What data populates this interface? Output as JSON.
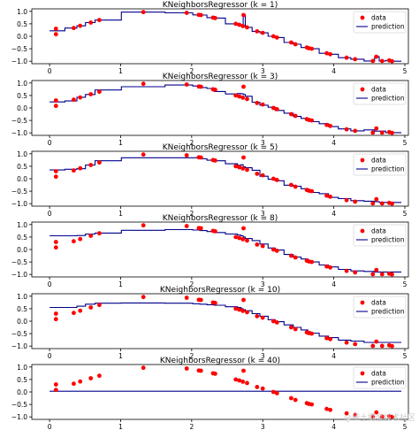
{
  "data_points": {
    "x": [
      0.09,
      0.09,
      0.34,
      0.43,
      0.58,
      0.7,
      1.32,
      1.93,
      2.1,
      2.13,
      2.3,
      2.33,
      2.62,
      2.67,
      2.72,
      2.73,
      2.78,
      2.92,
      3.0,
      3.15,
      3.2,
      3.4,
      3.46,
      3.62,
      3.65,
      3.69,
      3.9,
      3.95,
      4.18,
      4.3,
      4.55,
      4.6,
      4.68,
      4.78,
      4.82
    ]
  },
  "chart_data": [
    {
      "type": "line",
      "title": "KNeighborsRegressor (k = 1)",
      "k": 1,
      "xlim": [
        -0.25,
        5.05
      ],
      "ylim": [
        -1.1,
        1.1
      ],
      "xticks": [
        0,
        1,
        2,
        3,
        4,
        5
      ],
      "yticks": [
        -1.0,
        -0.5,
        0.0,
        0.5,
        1.0
      ],
      "ytick_labels": [
        "−1.0",
        "−0.5",
        "0.0",
        "0.5",
        "1.0"
      ],
      "legend": {
        "placement": "top-right",
        "entries": [
          "data",
          "prediction"
        ]
      },
      "series": [
        {
          "name": "data",
          "type": "scatter",
          "y": [
            0.3,
            0.08,
            0.33,
            0.42,
            0.55,
            0.65,
            0.97,
            0.94,
            0.86,
            0.85,
            0.75,
            0.73,
            0.5,
            0.46,
            0.41,
            0.85,
            0.36,
            0.2,
            0.14,
            0.0,
            -0.05,
            -0.25,
            -0.32,
            -0.45,
            -0.48,
            -0.5,
            -0.68,
            -0.72,
            -0.86,
            -0.92,
            -0.99,
            -0.82,
            -0.99,
            -0.97,
            -1.0
          ]
        },
        {
          "name": "prediction",
          "type": "line",
          "y": [
            0.22,
            0.22,
            0.33,
            0.42,
            0.55,
            0.65,
            0.97,
            0.94,
            0.86,
            0.85,
            0.75,
            0.73,
            0.5,
            0.46,
            0.41,
            0.85,
            0.36,
            0.2,
            0.14,
            0.0,
            -0.05,
            -0.25,
            -0.32,
            -0.45,
            -0.48,
            -0.5,
            -0.68,
            -0.72,
            -0.86,
            -0.92,
            -0.99,
            -0.82,
            -0.99,
            -0.97,
            -1.0
          ]
        }
      ]
    },
    {
      "type": "line",
      "title": "KNeighborsRegressor (k = 3)",
      "k": 3,
      "xlim": [
        -0.25,
        5.05
      ],
      "ylim": [
        -1.1,
        1.1
      ],
      "xticks": [
        0,
        1,
        2,
        3,
        4,
        5
      ],
      "yticks": [
        -1.0,
        -0.5,
        0.0,
        0.5,
        1.0
      ],
      "ytick_labels": [
        "−1.0",
        "−0.5",
        "0.0",
        "0.5",
        "1.0"
      ],
      "legend": {
        "placement": "top-right",
        "entries": [
          "data",
          "prediction"
        ]
      },
      "series": [
        {
          "name": "data",
          "type": "scatter",
          "y": [
            0.3,
            0.08,
            0.33,
            0.42,
            0.55,
            0.65,
            0.97,
            0.94,
            0.86,
            0.85,
            0.75,
            0.73,
            0.5,
            0.46,
            0.41,
            0.85,
            0.36,
            0.2,
            0.14,
            0.0,
            -0.05,
            -0.25,
            -0.32,
            -0.45,
            -0.48,
            -0.5,
            -0.68,
            -0.72,
            -0.86,
            -0.92,
            -0.99,
            -0.82,
            -0.99,
            -0.97,
            -1.0
          ]
        },
        {
          "name": "prediction",
          "type": "line",
          "y": [
            0.24,
            0.24,
            0.28,
            0.43,
            0.54,
            0.72,
            0.85,
            0.92,
            0.88,
            0.82,
            0.78,
            0.66,
            0.56,
            0.58,
            0.57,
            0.54,
            0.47,
            0.23,
            0.11,
            0.03,
            -0.1,
            -0.21,
            -0.34,
            -0.42,
            -0.48,
            -0.55,
            -0.63,
            -0.75,
            -0.84,
            -0.92,
            -0.88,
            -0.93,
            -0.93,
            -0.99,
            -0.99
          ]
        }
      ]
    },
    {
      "type": "line",
      "title": "KNeighborsRegressor (k = 5)",
      "k": 5,
      "xlim": [
        -0.25,
        5.05
      ],
      "ylim": [
        -1.1,
        1.1
      ],
      "xticks": [
        0,
        1,
        2,
        3,
        4,
        5
      ],
      "yticks": [
        -1.0,
        -0.5,
        0.0,
        0.5,
        1.0
      ],
      "ytick_labels": [
        "−1.0",
        "−0.5",
        "0.0",
        "0.5",
        "1.0"
      ],
      "legend": {
        "placement": "top-right",
        "entries": [
          "data",
          "prediction"
        ]
      },
      "series": [
        {
          "name": "data",
          "type": "scatter",
          "y": [
            0.3,
            0.08,
            0.33,
            0.42,
            0.55,
            0.65,
            0.97,
            0.94,
            0.86,
            0.85,
            0.75,
            0.73,
            0.5,
            0.46,
            0.41,
            0.85,
            0.36,
            0.2,
            0.14,
            0.0,
            -0.05,
            -0.25,
            -0.32,
            -0.45,
            -0.48,
            -0.5,
            -0.68,
            -0.72,
            -0.86,
            -0.92,
            -0.99,
            -0.82,
            -0.99,
            -0.97,
            -1.0
          ]
        },
        {
          "name": "prediction",
          "type": "line",
          "y": [
            0.35,
            0.35,
            0.38,
            0.4,
            0.55,
            0.72,
            0.84,
            0.84,
            0.84,
            0.8,
            0.74,
            0.72,
            0.6,
            0.54,
            0.56,
            0.48,
            0.44,
            0.34,
            0.1,
            -0.02,
            -0.08,
            -0.26,
            -0.3,
            -0.4,
            -0.5,
            -0.55,
            -0.6,
            -0.75,
            -0.8,
            -0.88,
            -0.9,
            -0.92,
            -0.95,
            -0.95,
            -0.95
          ]
        }
      ]
    },
    {
      "type": "line",
      "title": "KNeighborsRegressor (k = 8)",
      "k": 8,
      "xlim": [
        -0.25,
        5.05
      ],
      "ylim": [
        -1.1,
        1.1
      ],
      "xticks": [
        0,
        1,
        2,
        3,
        4,
        5
      ],
      "yticks": [
        -1.0,
        -0.5,
        0.0,
        0.5,
        1.0
      ],
      "ytick_labels": [
        "−1.0",
        "−0.5",
        "0.0",
        "0.5",
        "1.0"
      ],
      "legend": {
        "placement": "top-right",
        "entries": [
          "data",
          "prediction"
        ]
      },
      "series": [
        {
          "name": "data",
          "type": "scatter",
          "y": [
            0.3,
            0.08,
            0.33,
            0.42,
            0.55,
            0.65,
            0.97,
            0.94,
            0.86,
            0.85,
            0.75,
            0.73,
            0.5,
            0.46,
            0.41,
            0.85,
            0.36,
            0.2,
            0.14,
            0.0,
            -0.05,
            -0.25,
            -0.32,
            -0.45,
            -0.48,
            -0.5,
            -0.68,
            -0.72,
            -0.86,
            -0.92,
            -0.99,
            -0.82,
            -0.99,
            -0.97,
            -1.0
          ]
        },
        {
          "name": "prediction",
          "type": "line",
          "y": [
            0.55,
            0.55,
            0.55,
            0.56,
            0.62,
            0.66,
            0.77,
            0.8,
            0.78,
            0.76,
            0.72,
            0.68,
            0.62,
            0.58,
            0.55,
            0.5,
            0.44,
            0.36,
            0.22,
            0.06,
            -0.02,
            -0.2,
            -0.3,
            -0.38,
            -0.45,
            -0.5,
            -0.62,
            -0.7,
            -0.8,
            -0.86,
            -0.88,
            -0.9,
            -0.9,
            -0.9,
            -0.9
          ]
        }
      ]
    },
    {
      "type": "line",
      "title": "KNeighborsRegressor (k = 10)",
      "k": 10,
      "xlim": [
        -0.25,
        5.05
      ],
      "ylim": [
        -1.1,
        1.1
      ],
      "xticks": [
        0,
        1,
        2,
        3,
        4,
        5
      ],
      "yticks": [
        -1.0,
        -0.5,
        0.0,
        0.5,
        1.0
      ],
      "ytick_labels": [
        "−1.0",
        "−0.5",
        "0.0",
        "0.5",
        "1.0"
      ],
      "legend": {
        "placement": "top-right",
        "entries": [
          "data",
          "prediction"
        ]
      },
      "series": [
        {
          "name": "data",
          "type": "scatter",
          "y": [
            0.3,
            0.08,
            0.33,
            0.42,
            0.55,
            0.65,
            0.97,
            0.94,
            0.86,
            0.85,
            0.75,
            0.73,
            0.5,
            0.46,
            0.41,
            0.85,
            0.36,
            0.2,
            0.14,
            0.0,
            -0.05,
            -0.25,
            -0.32,
            -0.45,
            -0.48,
            -0.5,
            -0.68,
            -0.72,
            -0.86,
            -0.92,
            -0.99,
            -0.82,
            -0.99,
            -0.97,
            -1.0
          ]
        },
        {
          "name": "prediction",
          "type": "line",
          "y": [
            0.55,
            0.55,
            0.55,
            0.6,
            0.68,
            0.72,
            0.73,
            0.72,
            0.7,
            0.68,
            0.66,
            0.64,
            0.58,
            0.55,
            0.5,
            0.46,
            0.42,
            0.3,
            0.2,
            0.06,
            -0.02,
            -0.15,
            -0.25,
            -0.35,
            -0.42,
            -0.48,
            -0.6,
            -0.66,
            -0.76,
            -0.8,
            -0.85,
            -0.85,
            -0.85,
            -0.85,
            -0.85
          ]
        }
      ]
    },
    {
      "type": "line",
      "title": "KNeighborsRegressor (k = 40)",
      "k": 40,
      "xlim": [
        -0.25,
        5.05
      ],
      "ylim": [
        -1.1,
        1.1
      ],
      "xticks": [
        0,
        1,
        2,
        3,
        4,
        5
      ],
      "yticks": [
        -1.0,
        -0.5,
        0.0,
        0.5,
        1.0
      ],
      "ytick_labels": [
        "−1.0",
        "−0.5",
        "0.0",
        "0.5",
        "1.0"
      ],
      "legend": {
        "placement": "top-right",
        "entries": [
          "data",
          "prediction"
        ]
      },
      "series": [
        {
          "name": "data",
          "type": "scatter",
          "y": [
            0.3,
            0.08,
            0.33,
            0.42,
            0.55,
            0.65,
            0.97,
            0.94,
            0.86,
            0.85,
            0.75,
            0.73,
            0.5,
            0.46,
            0.41,
            0.85,
            0.36,
            0.2,
            0.14,
            0.0,
            -0.05,
            -0.25,
            -0.32,
            -0.45,
            -0.48,
            -0.5,
            -0.68,
            -0.72,
            -0.86,
            -0.92,
            -0.99,
            -0.82,
            -0.99,
            -0.97,
            -1.0
          ]
        },
        {
          "name": "prediction",
          "type": "line",
          "y": [
            0.03,
            0.03,
            0.03,
            0.03,
            0.03,
            0.03,
            0.03,
            0.03,
            0.03,
            0.03,
            0.03,
            0.03,
            0.03,
            0.03,
            0.03,
            0.03,
            0.03,
            0.03,
            0.03,
            0.03,
            0.03,
            0.03,
            0.03,
            0.03,
            0.03,
            0.03,
            0.03,
            0.03,
            0.03,
            0.03,
            0.03,
            0.03,
            0.03,
            0.03,
            0.03
          ]
        }
      ]
    }
  ],
  "colors": {
    "data": "#ff0000",
    "prediction": "#00008b"
  },
  "watermark": "@稀土掘金技术社区"
}
